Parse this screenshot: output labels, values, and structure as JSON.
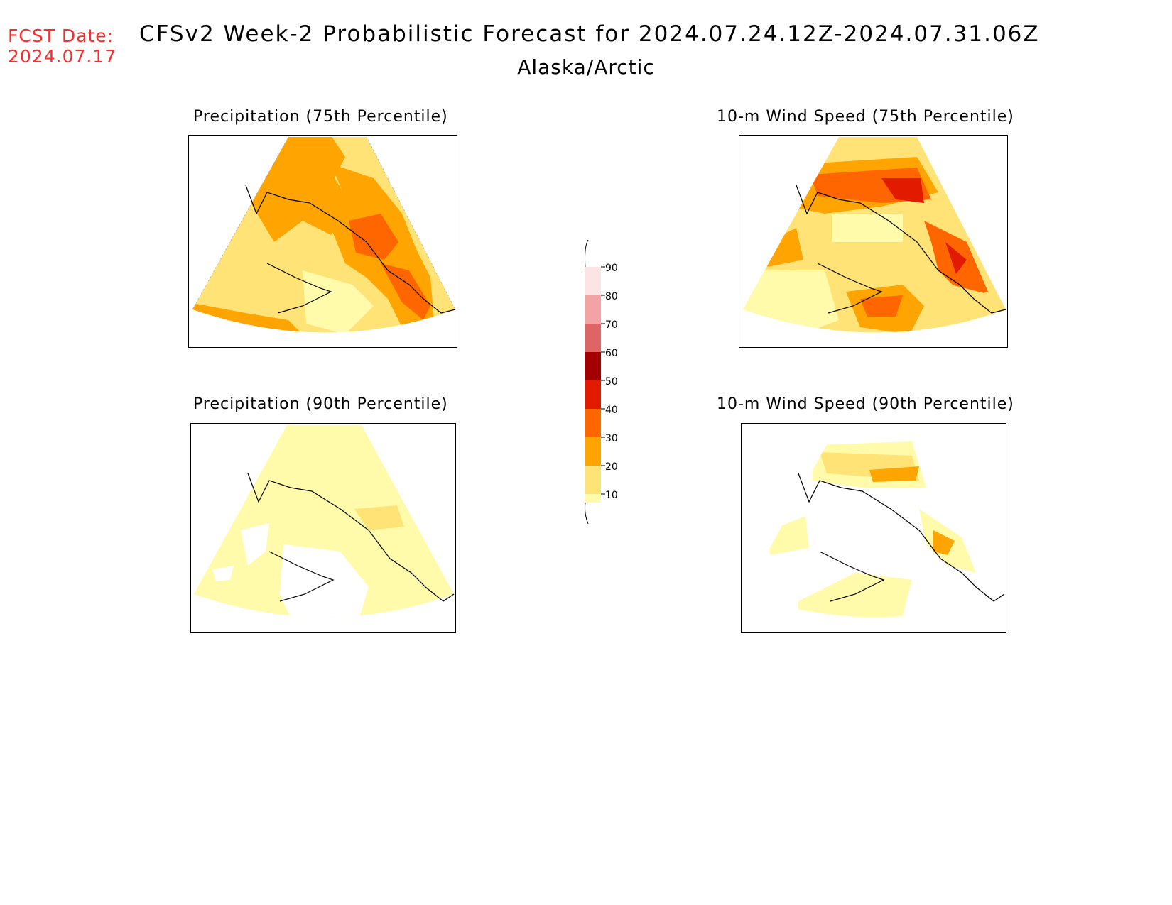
{
  "header": {
    "fcst_label": "FCST Date:",
    "fcst_date": "2024.07.17",
    "title": "CFSv2 Week-2 Probabilistic Forecast for 2024.07.24.12Z-2024.07.31.06Z",
    "subtitle": "Alaska/Arctic"
  },
  "panels": [
    {
      "title": "Precipitation (75th Percentile)"
    },
    {
      "title": "10-m Wind Speed (75th Percentile)"
    },
    {
      "title": "Precipitation (90th Percentile)"
    },
    {
      "title": "10-m Wind Speed (90th Percentile)"
    }
  ],
  "legend": {
    "levels": [
      "10",
      "20",
      "30",
      "40",
      "50",
      "60",
      "70",
      "80",
      "90"
    ],
    "colors": {
      "10-20": "#fffbaa",
      "20-30": "#ffe376",
      "30-40": "#ffa400",
      "40-50": "#ff6600",
      "50-60": "#e11a00",
      "60-70": "#a50000",
      "70-80": "#dd6565",
      "80-90": "#f2a4a4",
      "90-100": "#fde4e4"
    }
  }
}
